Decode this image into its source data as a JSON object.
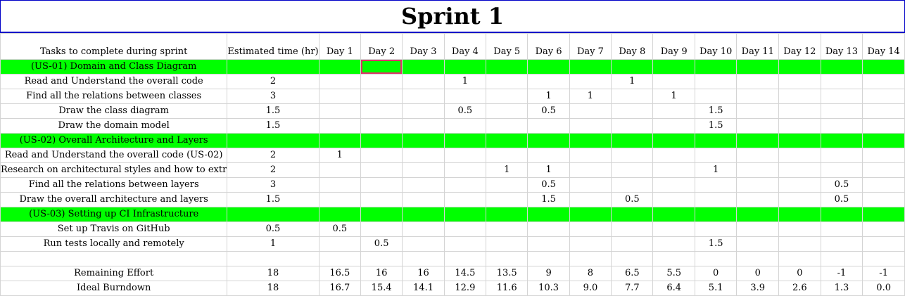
{
  "sheet": {
    "title": "Sprint 1",
    "headers": [
      "Tasks to complete during sprint",
      "Estimated time (hr)",
      "Day 1",
      "Day 2",
      "Day 3",
      "Day 4",
      "Day 5",
      "Day 6",
      "Day 7",
      "Day 8",
      "Day 9",
      "Day 10",
      "Day 11",
      "Day 12",
      "Day 13",
      "Day 14"
    ],
    "rows": [
      {
        "kind": "story",
        "cells": [
          "(US-01)  Domain and Class Diagram",
          "",
          "",
          "",
          "",
          "",
          "",
          "",
          "",
          "",
          "",
          "",
          "",
          "",
          "",
          ""
        ]
      },
      {
        "kind": "task",
        "cells": [
          "Read and Understand the overall code",
          "2",
          "",
          "",
          "",
          "1",
          "",
          "",
          "",
          "1",
          "",
          "",
          "",
          "",
          "",
          ""
        ]
      },
      {
        "kind": "task",
        "cells": [
          "Find all the relations between classes",
          "3",
          "",
          "",
          "",
          "",
          "",
          "1",
          "1",
          "",
          "1",
          "",
          "",
          "",
          "",
          ""
        ]
      },
      {
        "kind": "task",
        "cells": [
          "Draw the class diagram",
          "1.5",
          "",
          "",
          "",
          "0.5",
          "",
          "0.5",
          "",
          "",
          "",
          "1.5",
          "",
          "",
          "",
          ""
        ]
      },
      {
        "kind": "task",
        "cells": [
          "Draw the domain model",
          "1.5",
          "",
          "",
          "",
          "",
          "",
          "",
          "",
          "",
          "",
          "1.5",
          "",
          "",
          "",
          ""
        ]
      },
      {
        "kind": "story",
        "cells": [
          "(US-02) Overall Architecture and Layers",
          "",
          "",
          "",
          "",
          "",
          "",
          "",
          "",
          "",
          "",
          "",
          "",
          "",
          "",
          ""
        ]
      },
      {
        "kind": "task",
        "cells": [
          "Read and Understand the overall code (US-02)",
          "2",
          "1",
          "",
          "",
          "",
          "",
          "",
          "",
          "",
          "",
          "",
          "",
          "",
          "",
          ""
        ]
      },
      {
        "kind": "task-left",
        "cells": [
          "Research on architectural styles and how to extr",
          "2",
          "",
          "",
          "",
          "",
          "1",
          "1",
          "",
          "",
          "",
          "1",
          "",
          "",
          "",
          ""
        ]
      },
      {
        "kind": "task",
        "cells": [
          "Find all the relations between layers",
          "3",
          "",
          "",
          "",
          "",
          "",
          "0.5",
          "",
          "",
          "",
          "",
          "",
          "",
          "0.5",
          ""
        ]
      },
      {
        "kind": "task",
        "cells": [
          "Draw the overall architecture and layers",
          "1.5",
          "",
          "",
          "",
          "",
          "",
          "1.5",
          "",
          "0.5",
          "",
          "",
          "",
          "",
          "0.5",
          ""
        ]
      },
      {
        "kind": "story",
        "cells": [
          "(US-03) Setting up CI Infrastructure",
          "",
          "",
          "",
          "",
          "",
          "",
          "",
          "",
          "",
          "",
          "",
          "",
          "",
          "",
          ""
        ]
      },
      {
        "kind": "task",
        "cells": [
          "Set up Travis on GitHub",
          "0.5",
          "0.5",
          "",
          "",
          "",
          "",
          "",
          "",
          "",
          "",
          "",
          "",
          "",
          "",
          ""
        ]
      },
      {
        "kind": "task",
        "cells": [
          "Run tests locally and remotely",
          "1",
          "",
          "0.5",
          "",
          "",
          "",
          "",
          "",
          "",
          "",
          "1.5",
          "",
          "",
          "",
          ""
        ]
      },
      {
        "kind": "blank",
        "cells": [
          "",
          "",
          "",
          "",
          "",
          "",
          "",
          "",
          "",
          "",
          "",
          "",
          "",
          "",
          "",
          ""
        ]
      },
      {
        "kind": "summary",
        "cells": [
          "Remaining Effort",
          "18",
          "16.5",
          "16",
          "16",
          "14.5",
          "13.5",
          "9",
          "8",
          "6.5",
          "5.5",
          "0",
          "0",
          "0",
          "-1",
          "-1"
        ]
      },
      {
        "kind": "summary",
        "cells": [
          "Ideal Burndown",
          "18",
          "16.7",
          "15.4",
          "14.1",
          "12.9",
          "11.6",
          "10.3",
          "9.0",
          "7.7",
          "6.4",
          "5.1",
          "3.9",
          "2.6",
          "1.3",
          "0.0"
        ]
      }
    ]
  }
}
